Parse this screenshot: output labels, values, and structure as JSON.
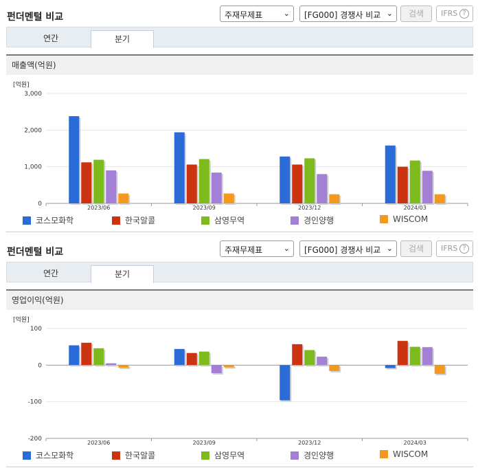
{
  "panels": [
    {
      "title": "펀더멘털 비교",
      "select1": "주재무제표",
      "select2": "[FG000] 경쟁사 비교",
      "search_label": "검색",
      "ifrs_label": "IFRS",
      "tabs": [
        "연간",
        "분기"
      ],
      "chart_title": "매출액(억원)",
      "unit_label": "[억원]"
    },
    {
      "title": "펀더멘털 비교",
      "select1": "주재무제표",
      "select2": "[FG000] 경쟁사 비교",
      "search_label": "검색",
      "ifrs_label": "IFRS",
      "tabs": [
        "연간",
        "분기"
      ],
      "chart_title": "영업이익(억원)",
      "unit_label": "[억원]"
    }
  ],
  "legend": [
    {
      "name": "코스모화학",
      "color": "#2b6bd8"
    },
    {
      "name": "한국알콜",
      "color": "#cc3311"
    },
    {
      "name": "삼영무역",
      "color": "#7dbb1d"
    },
    {
      "name": "경인양행",
      "color": "#a37fd6"
    },
    {
      "name": "WISCOM",
      "color": "#f39a1e"
    }
  ],
  "chart_data": [
    {
      "type": "bar",
      "categories": [
        "2023/06",
        "2023/09",
        "2023/12",
        "2024/03"
      ],
      "ylabel": "[억원]",
      "ylim": [
        0,
        3000
      ],
      "yticks": [
        "0",
        "1,000",
        "2,000",
        "3,000"
      ],
      "series": [
        {
          "name": "코스모화학",
          "values": [
            2380,
            1940,
            1280,
            1580
          ]
        },
        {
          "name": "한국알콜",
          "values": [
            1120,
            1060,
            1060,
            1000
          ]
        },
        {
          "name": "삼영무역",
          "values": [
            1190,
            1210,
            1230,
            1170
          ]
        },
        {
          "name": "경인양행",
          "values": [
            900,
            840,
            800,
            890
          ]
        },
        {
          "name": "WISCOM",
          "values": [
            270,
            270,
            250,
            250
          ]
        }
      ]
    },
    {
      "type": "bar",
      "categories": [
        "2023/06",
        "2023/09",
        "2023/12",
        "2024/03"
      ],
      "ylabel": "[억원]",
      "ylim": [
        -200,
        100
      ],
      "yticks": [
        "-200",
        "-100",
        "0",
        "100"
      ],
      "series": [
        {
          "name": "코스모화학",
          "values": [
            54,
            44,
            -96,
            -8
          ]
        },
        {
          "name": "한국알콜",
          "values": [
            61,
            33,
            57,
            66
          ]
        },
        {
          "name": "삼영무역",
          "values": [
            46,
            37,
            41,
            50
          ]
        },
        {
          "name": "경인양행",
          "values": [
            5,
            -22,
            23,
            49
          ]
        },
        {
          "name": "WISCOM",
          "values": [
            -7,
            -6,
            -16,
            -24
          ]
        }
      ]
    }
  ]
}
